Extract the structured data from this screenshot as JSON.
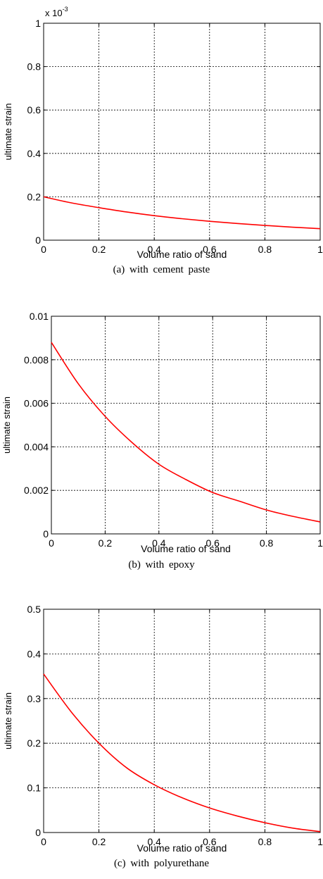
{
  "chart_data": [
    {
      "type": "line",
      "xlabel": "Volume ratio of sand",
      "ylabel": "ultimate strain",
      "xlim": [
        0,
        1
      ],
      "ylim": [
        0,
        1
      ],
      "y_multiplier": "x 10",
      "y_multiplier_exp": "-3",
      "xticks": [
        "0",
        "0.2",
        "0.4",
        "0.6",
        "0.8",
        "1"
      ],
      "yticks": [
        "0",
        "0.2",
        "0.4",
        "0.6",
        "0.8",
        "1"
      ],
      "grid": true,
      "series": [
        {
          "color": "#ff0000",
          "x": [
            0,
            0.1,
            0.2,
            0.3,
            0.4,
            0.5,
            0.6,
            0.7,
            0.8,
            0.9,
            1.0
          ],
          "y": [
            0.2,
            0.172,
            0.15,
            0.13,
            0.113,
            0.099,
            0.087,
            0.077,
            0.068,
            0.06,
            0.053
          ]
        }
      ],
      "caption": "(a)  with  cement  paste"
    },
    {
      "type": "line",
      "xlabel": "Volume ratio of sand",
      "ylabel": "ultimate strain",
      "xlim": [
        0,
        1
      ],
      "ylim": [
        0,
        0.01
      ],
      "xticks": [
        "0",
        "0.2",
        "0.4",
        "0.6",
        "0.8",
        "1"
      ],
      "yticks": [
        "0",
        "0.002",
        "0.004",
        "0.006",
        "0.008",
        "0.01"
      ],
      "grid": true,
      "series": [
        {
          "color": "#ff0000",
          "x": [
            0,
            0.1,
            0.2,
            0.3,
            0.4,
            0.5,
            0.6,
            0.7,
            0.8,
            0.9,
            1.0
          ],
          "y": [
            0.0088,
            0.0069,
            0.0054,
            0.0042,
            0.0032,
            0.0025,
            0.0019,
            0.0015,
            0.0011,
            0.0008,
            0.00055
          ]
        }
      ],
      "caption": "(b)  with  epoxy"
    },
    {
      "type": "line",
      "xlabel": "Volume ratio of sand",
      "ylabel": "ultimate strain",
      "xlim": [
        0,
        1
      ],
      "ylim": [
        0,
        0.5
      ],
      "xticks": [
        "0",
        "0.2",
        "0.4",
        "0.6",
        "0.8",
        "1"
      ],
      "yticks": [
        "0",
        "0.1",
        "0.2",
        "0.3",
        "0.4",
        "0.5"
      ],
      "grid": true,
      "series": [
        {
          "color": "#ff0000",
          "x": [
            0,
            0.1,
            0.2,
            0.3,
            0.4,
            0.5,
            0.6,
            0.7,
            0.8,
            0.9,
            1.0
          ],
          "y": [
            0.355,
            0.27,
            0.2,
            0.145,
            0.107,
            0.078,
            0.055,
            0.037,
            0.022,
            0.01,
            0.002
          ]
        }
      ],
      "caption": "(c)  with  polyurethane"
    }
  ]
}
